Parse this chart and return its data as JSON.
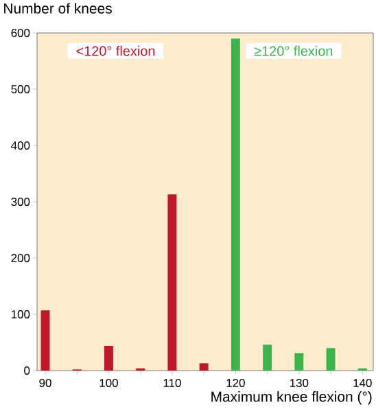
{
  "chart_data": {
    "type": "bar",
    "xlabel": "Maximum knee flexion (°)",
    "ylabel": "Number of knees",
    "xlim": [
      88.7,
      141.7
    ],
    "xticks": [
      90,
      {
        "value": 95,
        "label": null
      },
      100,
      {
        "value": 105,
        "label": null
      },
      110,
      {
        "value": 115,
        "label": null
      },
      120,
      {
        "value": 125,
        "label": null
      },
      130,
      {
        "value": 135,
        "label": null
      },
      140
    ],
    "ylim": [
      0,
      600
    ],
    "yticks": [
      0,
      100,
      200,
      300,
      400,
      500,
      600
    ],
    "grid": false,
    "series": [
      {
        "name": "<120° flexion",
        "color": "#c0182a",
        "x": [
          90,
          95,
          100,
          105,
          110,
          115
        ],
        "values": [
          107,
          2,
          44,
          4,
          313,
          13
        ]
      },
      {
        "name": "≥120° flexion",
        "color": "#3bb54a",
        "x": [
          120,
          125,
          130,
          135,
          140
        ],
        "values": [
          590,
          46,
          31,
          40,
          4
        ]
      }
    ]
  }
}
